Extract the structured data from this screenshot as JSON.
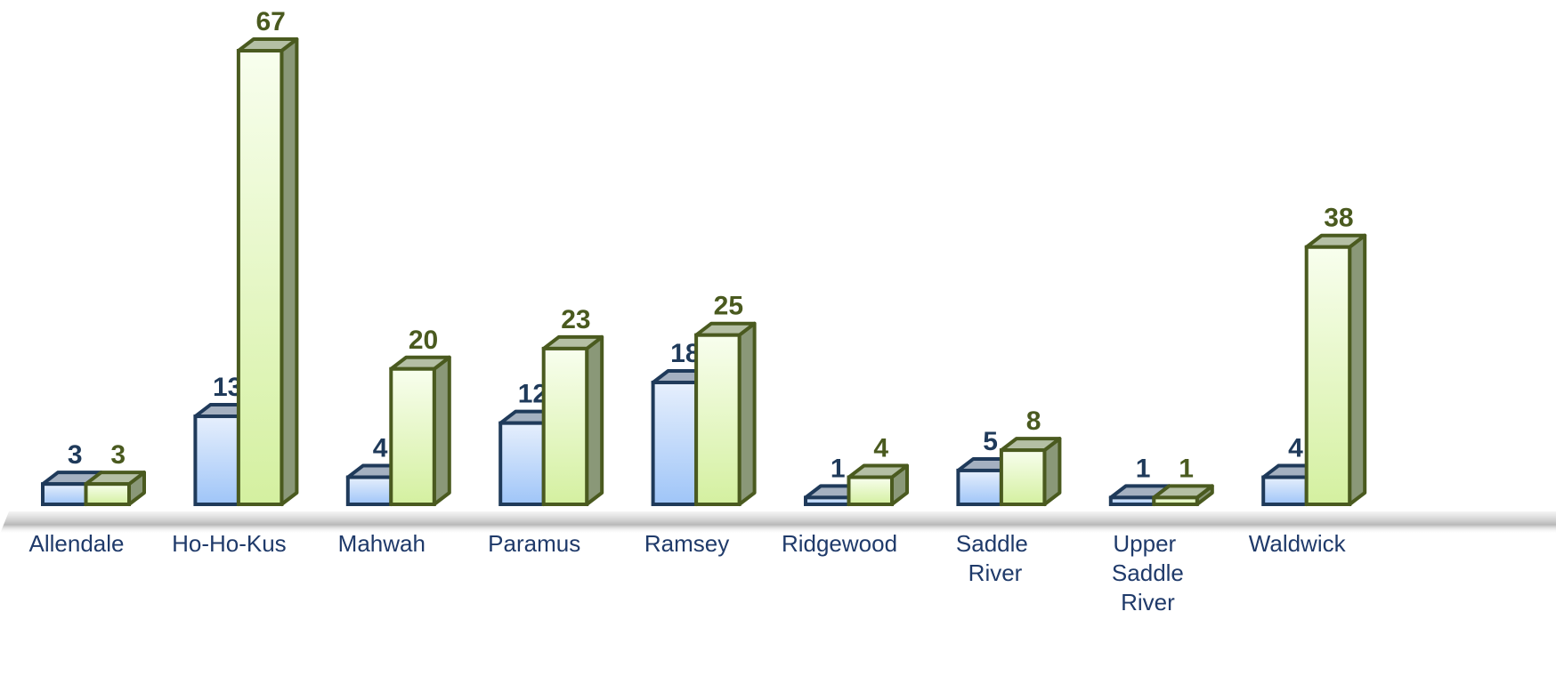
{
  "chart_data": {
    "type": "bar3d",
    "categories": [
      "Allendale",
      "Ho-Ho-Kus",
      "Mahwah",
      "Paramus",
      "Ramsey",
      "Ridgewood",
      "Saddle River",
      "Upper Saddle River",
      "Waldwick"
    ],
    "series": [
      {
        "color": "#9fc5f8",
        "values": [
          3,
          13,
          4,
          12,
          18,
          1,
          5,
          1,
          4
        ]
      },
      {
        "color": "#d4f0a0",
        "values": [
          3,
          67,
          20,
          23,
          25,
          4,
          8,
          1,
          38
        ]
      }
    ]
  }
}
